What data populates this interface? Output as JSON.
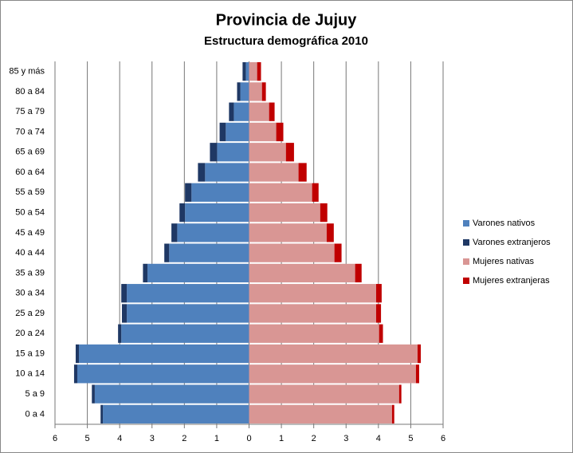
{
  "chart_data": {
    "type": "bar",
    "orientation": "horizontal",
    "stacked": true,
    "title": "Provincia de Jujuy",
    "subtitle": "Estructura demográfica 2010",
    "categories": [
      "0 a 4",
      "5 a 9",
      "10 a 14",
      "15 a 19",
      "20 a 24",
      "25 a 29",
      "30 a 34",
      "35 a 39",
      "40 a 44",
      "45 a 49",
      "50 a 54",
      "55 a 59",
      "60 a 64",
      "65 a 69",
      "70 a 74",
      "75 a 79",
      "80 a 84",
      "85 y más"
    ],
    "series": [
      {
        "name": "Varones nativos",
        "color": "#4f81bd",
        "values": [
          -4.52,
          -4.77,
          -5.31,
          -5.26,
          -3.95,
          -3.78,
          -3.78,
          -3.14,
          -2.47,
          -2.22,
          -1.98,
          -1.78,
          -1.36,
          -0.99,
          -0.72,
          -0.47,
          -0.27,
          -0.1
        ]
      },
      {
        "name": "Varones extranjeros",
        "color": "#1f3864",
        "values": [
          -0.07,
          -0.09,
          -0.1,
          -0.1,
          -0.1,
          -0.15,
          -0.17,
          -0.14,
          -0.15,
          -0.18,
          -0.17,
          -0.2,
          -0.22,
          -0.22,
          -0.19,
          -0.15,
          -0.1,
          -0.1
        ]
      },
      {
        "name": "Mujeres nativas",
        "color": "#d99694",
        "values": [
          4.42,
          4.64,
          5.16,
          5.21,
          4.02,
          3.93,
          3.93,
          3.28,
          2.64,
          2.4,
          2.2,
          1.95,
          1.53,
          1.14,
          0.84,
          0.62,
          0.4,
          0.25
        ]
      },
      {
        "name": "Mujeres extranjeras",
        "color": "#c00000",
        "values": [
          0.07,
          0.07,
          0.1,
          0.1,
          0.12,
          0.15,
          0.17,
          0.2,
          0.22,
          0.22,
          0.22,
          0.2,
          0.25,
          0.25,
          0.22,
          0.17,
          0.12,
          0.12
        ]
      }
    ],
    "xlim": [
      -6,
      6
    ],
    "xticks": [
      {
        "value": -6,
        "label": "6"
      },
      {
        "value": -5,
        "label": "5"
      },
      {
        "value": -4,
        "label": "4"
      },
      {
        "value": -3,
        "label": "3"
      },
      {
        "value": -2,
        "label": "2"
      },
      {
        "value": -1,
        "label": "1"
      },
      0,
      1,
      2,
      3,
      4,
      5,
      6
    ],
    "grid": true,
    "legend": "right"
  }
}
